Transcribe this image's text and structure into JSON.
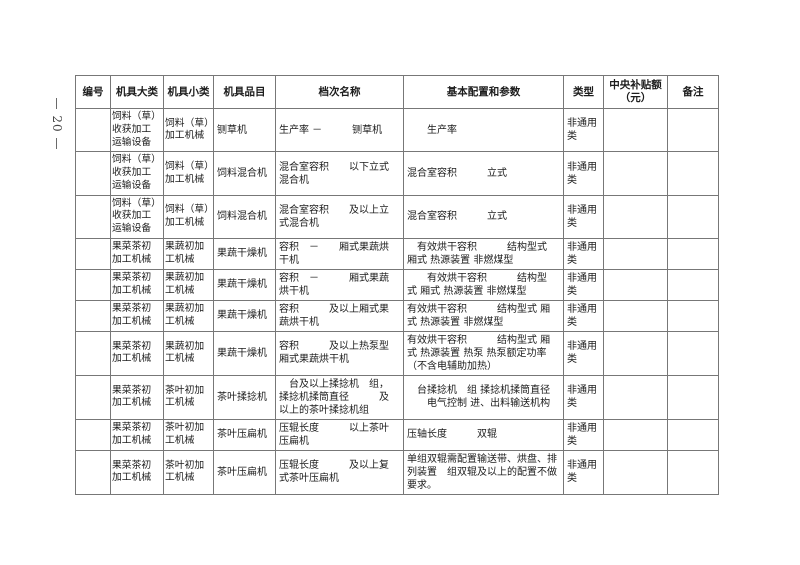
{
  "page": {
    "number_label": "— 20 —",
    "background_color": "#ffffff"
  },
  "table": {
    "border_color": "#777777",
    "text_color": "#1c1c1c",
    "headers": [
      {
        "key": "no",
        "label": "编号"
      },
      {
        "key": "category",
        "label": "机具大类"
      },
      {
        "key": "subcategory",
        "label": "机具小类"
      },
      {
        "key": "item",
        "label": "机具品目"
      },
      {
        "key": "grade",
        "label": "档次名称"
      },
      {
        "key": "config",
        "label": "基本配置和参数"
      },
      {
        "key": "type",
        "label": "类型"
      },
      {
        "key": "subsidy",
        "label": "中央补贴额（元）"
      },
      {
        "key": "remark",
        "label": "备注"
      }
    ],
    "rows": [
      {
        "no": "",
        "category": "饲料（草）\n收获加工\n运输设备",
        "subcategory": "饲料（草）\n加工机械",
        "item": "铡草机",
        "grade": "生产率 －　　　铡草机",
        "config": "　　生产率",
        "type": "非通用类",
        "subsidy": "",
        "remark": ""
      },
      {
        "no": "",
        "category": "饲料（草）\n收获加工\n运输设备",
        "subcategory": "饲料（草）\n加工机械",
        "item": "饲料混合机",
        "grade": "混合室容积　　以下立式\n混合机",
        "config": "混合室容积　　　立式",
        "type": "非通用类",
        "subsidy": "",
        "remark": ""
      },
      {
        "no": "",
        "category": "饲料（草）\n收获加工\n运输设备",
        "subcategory": "饲料（草）\n加工机械",
        "item": "饲料混合机",
        "grade": "混合室容积　　及以上立\n式混合机",
        "config": "混合室容积　　　立式",
        "type": "非通用类",
        "subsidy": "",
        "remark": ""
      },
      {
        "no": "",
        "category": "果菜茶初\n加工机械",
        "subcategory": "果蔬初加\n工机械",
        "item": "果蔬干燥机",
        "grade": "容积　－　　厢式果蔬烘\n干机",
        "config": "　有效烘干容积　　　结构型式\n厢式 热源装置 非燃煤型",
        "type": "非通用类",
        "subsidy": "",
        "remark": ""
      },
      {
        "no": "",
        "category": "果菜茶初\n加工机械",
        "subcategory": "果蔬初加\n工机械",
        "item": "果蔬干燥机",
        "grade": "容积　－　　　厢式果蔬\n烘干机",
        "config": "　　有效烘干容积　　　结构型\n式 厢式 热源装置 非燃煤型",
        "type": "非通用类",
        "subsidy": "",
        "remark": ""
      },
      {
        "no": "",
        "category": "果菜茶初\n加工机械",
        "subcategory": "果蔬初加\n工机械",
        "item": "果蔬干燥机",
        "grade": "容积　　　及以上厢式果\n蔬烘干机",
        "config": "有效烘干容积　　　结构型式 厢\n式 热源装置 非燃煤型",
        "type": "非通用类",
        "subsidy": "",
        "remark": ""
      },
      {
        "no": "",
        "category": "果菜茶初\n加工机械",
        "subcategory": "果蔬初加\n工机械",
        "item": "果蔬干燥机",
        "grade": "容积　　　及以上热泵型\n厢式果蔬烘干机",
        "config": "有效烘干容积　　　结构型式 厢\n式 热源装置 热泵 热泵额定功率\n（不含电辅助加热）",
        "type": "非通用类",
        "subsidy": "",
        "remark": ""
      },
      {
        "no": "",
        "category": "果菜茶初\n加工机械",
        "subcategory": "茶叶初加\n工机械",
        "item": "茶叶揉捻机",
        "grade": "　台及以上揉捻机　组，\n揉捻机揉筒直径　　　及\n以上的茶叶揉捻机组",
        "config": "　台揉捻机　组 揉捻机揉筒直径\n　　电气控制 进、出料输送机构",
        "type": "非通用类",
        "subsidy": "",
        "remark": ""
      },
      {
        "no": "",
        "category": "果菜茶初\n加工机械",
        "subcategory": "茶叶初加\n工机械",
        "item": "茶叶压扁机",
        "grade": "压辊长度　　　以上茶叶\n压扁机",
        "config": "压轴长度　　　双辊",
        "type": "非通用类",
        "subsidy": "",
        "remark": ""
      },
      {
        "no": "",
        "category": "果菜茶初\n加工机械",
        "subcategory": "茶叶初加\n工机械",
        "item": "茶叶压扁机",
        "grade": "压辊长度　　　及以上复\n式茶叶压扁机",
        "config": "单组双辊需配置输送带、烘盘、排\n列装置　组双辊及以上的配置不做\n要求。",
        "type": "非通用类",
        "subsidy": "",
        "remark": ""
      }
    ]
  }
}
